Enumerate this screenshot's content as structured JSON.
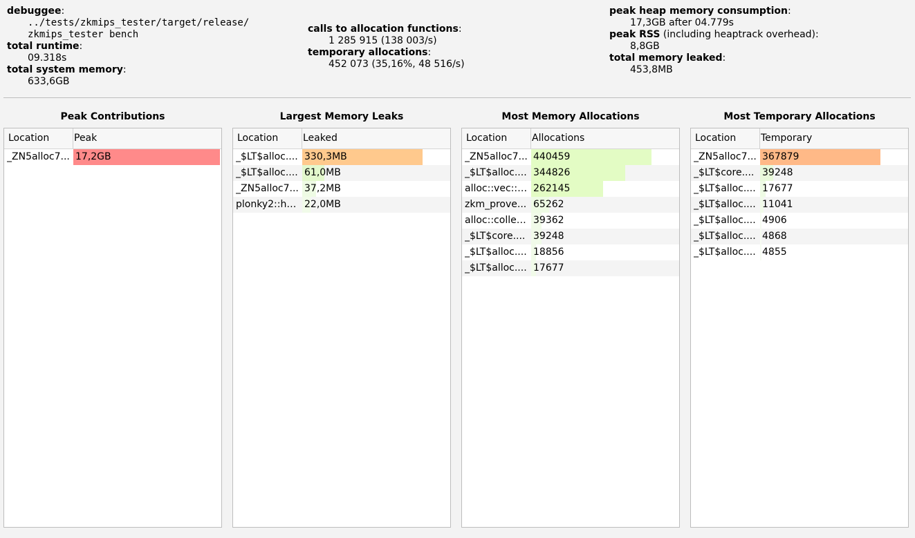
{
  "summary": {
    "debuggee_label": "debuggee",
    "debuggee_line1": "../tests/zkmips_tester/target/release/",
    "debuggee_line2": "zkmips_tester bench",
    "runtime_label": "total runtime",
    "runtime_value": "09.318s",
    "sysmem_label": "total system memory",
    "sysmem_value": "633,6GB",
    "calls_label": "calls to allocation functions",
    "calls_value": "1 285 915 (138 003/s)",
    "temp_label": "temporary allocations",
    "temp_value": "452 073 (35,16%, 48 516/s)",
    "peak_heap_label": "peak heap memory consumption",
    "peak_heap_value": "17,3GB after 04.779s",
    "peak_rss_label": "peak RSS",
    "peak_rss_suffix": " (including heaptrack overhead)",
    "peak_rss_value": "8,8GB",
    "leaked_label": "total memory leaked",
    "leaked_value": "453,8MB"
  },
  "panels": [
    {
      "title": "Peak Contributions",
      "col1": "Location",
      "col2": "Peak",
      "rows": [
        {
          "loc": "_ZN5alloc7...",
          "val": "17,2GB",
          "fill": 1.0,
          "color": "#ff8a8a"
        }
      ]
    },
    {
      "title": "Largest Memory Leaks",
      "col1": "Location",
      "col2": "Leaked",
      "rows": [
        {
          "loc": "_$LT$alloc....",
          "val": "330,3MB",
          "fill": 1.0,
          "color": "#ffc98d"
        },
        {
          "loc": "_$LT$alloc....",
          "val": "61,0MB",
          "fill": 0.185,
          "color": "#e3f8cc"
        },
        {
          "loc": "_ZN5alloc7...",
          "val": "37,2MB",
          "fill": 0.113,
          "color": "#eefbe4"
        },
        {
          "loc": "plonky2::ha...",
          "val": "22,0MB",
          "fill": 0.067,
          "color": "#f1fbe9"
        }
      ]
    },
    {
      "title": "Most Memory Allocations",
      "col1": "Location",
      "col2": "Allocations",
      "rows": [
        {
          "loc": "_ZN5alloc7...",
          "val": "440459",
          "fill": 1.0,
          "color": "#e3fcc4"
        },
        {
          "loc": "_$LT$alloc....",
          "val": "344826",
          "fill": 0.78,
          "color": "#e3fcc4"
        },
        {
          "loc": "alloc::vec::i...",
          "val": "262145",
          "fill": 0.595,
          "color": "#e3fcc4"
        },
        {
          "loc": "zkm_prove...",
          "val": "65262",
          "fill": 0.148,
          "color": "#eefbe4"
        },
        {
          "loc": "alloc::collec...",
          "val": "39362",
          "fill": 0.089,
          "color": "#f1fbe9"
        },
        {
          "loc": "_$LT$core....",
          "val": "39248",
          "fill": 0.089,
          "color": "#f1fbe9"
        },
        {
          "loc": "_$LT$alloc....",
          "val": "18856",
          "fill": 0.043,
          "color": "#f1fbe9"
        },
        {
          "loc": "_$LT$alloc....",
          "val": "17677",
          "fill": 0.04,
          "color": "#f1fbe9"
        }
      ]
    },
    {
      "title": "Most Temporary Allocations",
      "col1": "Location",
      "col2": "Temporary",
      "rows": [
        {
          "loc": "_ZN5alloc7...",
          "val": "367879",
          "fill": 1.0,
          "color": "#ffb987"
        },
        {
          "loc": "_$LT$core....",
          "val": "39248",
          "fill": 0.107,
          "color": "#e9fada"
        },
        {
          "loc": "_$LT$alloc....",
          "val": "17677",
          "fill": 0.048,
          "color": "#eefbe4"
        },
        {
          "loc": "_$LT$alloc....",
          "val": "11041",
          "fill": 0.03,
          "color": "#f1fbe9"
        },
        {
          "loc": "_$LT$alloc....",
          "val": "4906",
          "fill": 0.013,
          "color": "#f7fcf2"
        },
        {
          "loc": "_$LT$alloc....",
          "val": "4868",
          "fill": 0.013,
          "color": "#f7fcf2"
        },
        {
          "loc": "_$LT$alloc....",
          "val": "4855",
          "fill": 0.013,
          "color": "#f7fcf2"
        }
      ]
    }
  ]
}
